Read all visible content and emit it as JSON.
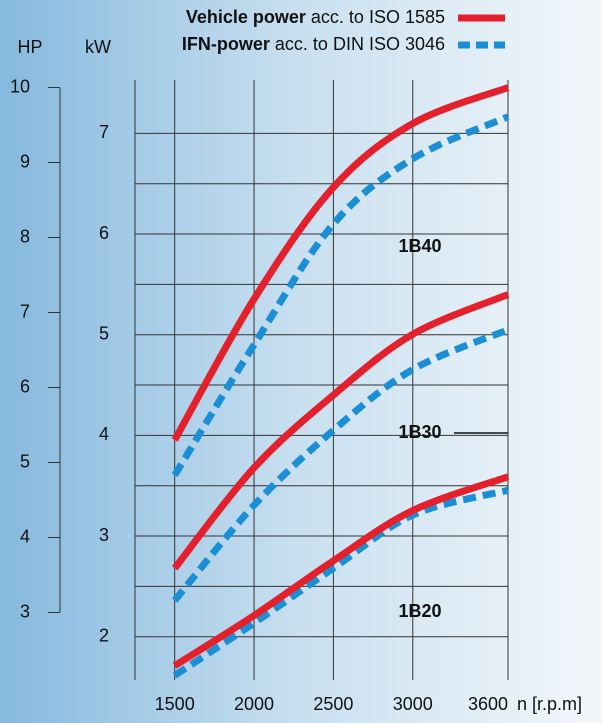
{
  "chart_data": {
    "type": "line",
    "legend": {
      "vehicle": {
        "bold": "Vehicle power",
        "text": "acc. to ISO 1585",
        "color": "#e3202b",
        "style": "solid"
      },
      "ifn": {
        "bold": "IFN-power",
        "text": "acc. to DIN ISO 3046",
        "color": "#1b8fd6",
        "style": "dashed"
      }
    },
    "ylabel": "HP",
    "y2label": "kW",
    "xlabel": "n [r.p.m]",
    "x": [
      1500,
      2000,
      2500,
      3000,
      3600
    ],
    "xlim": [
      1250,
      3600
    ],
    "xticks": [
      1500,
      2000,
      2500,
      3000,
      3600
    ],
    "ylim": [
      2.1,
      10.1
    ],
    "yticks": [
      3,
      4,
      5,
      6,
      7,
      8,
      9,
      10
    ],
    "y2lim": [
      1.57,
      7.53
    ],
    "y2ticks": [
      2,
      3,
      4,
      5,
      6,
      7
    ],
    "y2minor": [
      2.5,
      3.5,
      4.5,
      5.5,
      6.5
    ],
    "grid": true,
    "series": [
      {
        "name": "1B40",
        "vehicle": [
          5.3,
          7.18,
          8.67,
          9.52,
          10.0
        ],
        "ifn": [
          4.83,
          6.57,
          8.18,
          9.05,
          9.61
        ]
      },
      {
        "name": "1B30",
        "vehicle": [
          3.59,
          4.93,
          5.9,
          6.71,
          7.24
        ],
        "ifn": [
          3.16,
          4.43,
          5.43,
          6.24,
          6.77
        ]
      },
      {
        "name": "1B20",
        "vehicle": [
          2.29,
          2.96,
          3.69,
          4.36,
          4.81
        ],
        "ifn": [
          2.16,
          2.86,
          3.59,
          4.3,
          4.63
        ]
      }
    ]
  }
}
